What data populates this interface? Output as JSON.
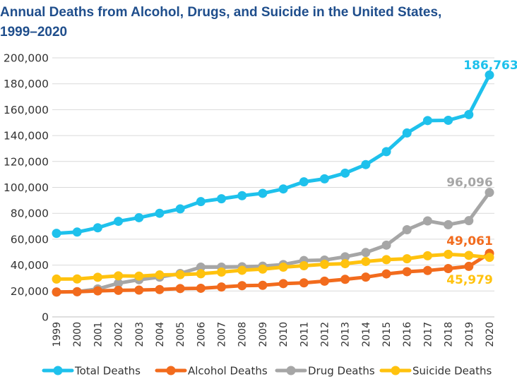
{
  "title_line1": "Annual Deaths from Alcohol, Drugs, and Suicide in the United States,",
  "title_line2": "1999–2020",
  "chart_data": {
    "type": "line",
    "title": "Annual Deaths from Alcohol, Drugs, and Suicide in the United States, 1999–2020",
    "xlabel": "",
    "ylabel": "",
    "ylim": [
      0,
      200000
    ],
    "yticks": [
      0,
      20000,
      40000,
      60000,
      80000,
      100000,
      120000,
      140000,
      160000,
      180000,
      200000
    ],
    "ytick_labels": [
      "0",
      "20,000",
      "40,000",
      "60,000",
      "80,000",
      "100,000",
      "120,000",
      "140,000",
      "160,000",
      "180,000",
      "200,000"
    ],
    "grid": "horizontal",
    "legend_position": "bottom",
    "categories": [
      "1999",
      "2000",
      "2001",
      "2002",
      "2003",
      "2004",
      "2005",
      "2006",
      "2007",
      "2008",
      "2009",
      "2010",
      "2011",
      "2012",
      "2013",
      "2014",
      "2015",
      "2016",
      "2017",
      "2018",
      "2019",
      "2020"
    ],
    "series": [
      {
        "name": "Total Deaths",
        "color": "#1ec1ec",
        "values": [
          64500,
          65500,
          68800,
          73800,
          76600,
          80000,
          83400,
          89000,
          91200,
          93600,
          95400,
          98800,
          104300,
          106600,
          111000,
          117600,
          127600,
          142000,
          151600,
          151800,
          156200,
          186763
        ],
        "end_label": "186,763"
      },
      {
        "name": "Alcohol Deaths",
        "color": "#f26b1d",
        "values": [
          19200,
          19400,
          20100,
          20500,
          20700,
          21100,
          21900,
          22100,
          23100,
          24100,
          24400,
          25700,
          26300,
          27600,
          29000,
          30700,
          33200,
          34900,
          35800,
          37300,
          39000,
          49061
        ],
        "end_label": "49,061"
      },
      {
        "name": "Drug Deaths",
        "color": "#a6a6a6",
        "values": [
          19200,
          19500,
          21600,
          26000,
          28700,
          30700,
          33500,
          38400,
          38400,
          38700,
          39200,
          40400,
          43500,
          43900,
          46400,
          49700,
          55400,
          67300,
          74100,
          71200,
          74300,
          96096
        ],
        "end_label": "96,096"
      },
      {
        "name": "Suicide Deaths",
        "color": "#ffc20e",
        "values": [
          29200,
          29300,
          30600,
          31700,
          31500,
          32400,
          32600,
          33300,
          34600,
          36000,
          36900,
          38400,
          39500,
          40600,
          41100,
          42800,
          44200,
          44900,
          47200,
          48300,
          47500,
          45979
        ],
        "end_label": "45,979"
      }
    ]
  }
}
